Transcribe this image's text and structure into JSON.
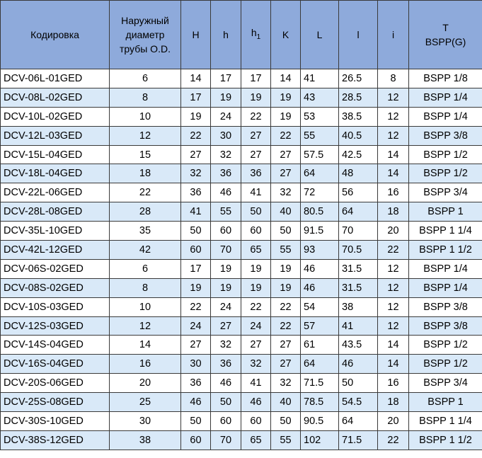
{
  "table": {
    "headers": [
      "Кодировка",
      "Наружный диаметр трубы O.D.",
      "H",
      "h",
      "h",
      "K",
      "L",
      "l",
      "i",
      "T BSPP(G)"
    ],
    "header_subscripts": {
      "4": "1"
    },
    "header_lines": {
      "1": [
        "Наружный",
        "диаметр",
        "трубы O.D."
      ],
      "9": [
        "T",
        "BSPP(G)"
      ]
    },
    "colors": {
      "header_bg": "#8eaadb",
      "alt_row_bg": "#d9e9f8",
      "border": "#3a3a3a"
    },
    "rows": [
      [
        "DCV-06L-01GED",
        "6",
        "14",
        "17",
        "17",
        "14",
        "41",
        "26.5",
        "8",
        "BSPP 1/8"
      ],
      [
        "DCV-08L-02GED",
        "8",
        "17",
        "19",
        "19",
        "19",
        "43",
        "28.5",
        "12",
        "BSPP 1/4"
      ],
      [
        "DCV-10L-02GED",
        "10",
        "19",
        "24",
        "22",
        "19",
        "53",
        "38.5",
        "12",
        "BSPP 1/4"
      ],
      [
        "DCV-12L-03GED",
        "12",
        "22",
        "30",
        "27",
        "22",
        "55",
        "40.5",
        "12",
        "BSPP 3/8"
      ],
      [
        "DCV-15L-04GED",
        "15",
        "27",
        "32",
        "27",
        "27",
        "57.5",
        "42.5",
        "14",
        "BSPP 1/2"
      ],
      [
        "DCV-18L-04GED",
        "18",
        "32",
        "36",
        "36",
        "27",
        "64",
        "48",
        "14",
        "BSPP 1/2"
      ],
      [
        "DCV-22L-06GED",
        "22",
        "36",
        "46",
        "41",
        "32",
        "72",
        "56",
        "16",
        "BSPP 3/4"
      ],
      [
        "DCV-28L-08GED",
        "28",
        "41",
        "55",
        "50",
        "40",
        "80.5",
        "64",
        "18",
        "BSPP 1"
      ],
      [
        "DCV-35L-10GED",
        "35",
        "50",
        "60",
        "60",
        "50",
        "91.5",
        "70",
        "20",
        "BSPP 1 1/4"
      ],
      [
        "DCV-42L-12GED",
        "42",
        "60",
        "70",
        "65",
        "55",
        "93",
        "70.5",
        "22",
        "BSPP 1 1/2"
      ],
      [
        "DCV-06S-02GED",
        "6",
        "17",
        "19",
        "19",
        "19",
        "46",
        "31.5",
        "12",
        "BSPP 1/4"
      ],
      [
        "DCV-08S-02GED",
        "8",
        "19",
        "19",
        "19",
        "19",
        "46",
        "31.5",
        "12",
        "BSPP 1/4"
      ],
      [
        "DCV-10S-03GED",
        "10",
        "22",
        "24",
        "22",
        "22",
        "54",
        "38",
        "12",
        "BSPP 3/8"
      ],
      [
        "DCV-12S-03GED",
        "12",
        "24",
        "27",
        "24",
        "22",
        "57",
        "41",
        "12",
        "BSPP 3/8"
      ],
      [
        "DCV-14S-04GED",
        "14",
        "27",
        "32",
        "27",
        "27",
        "61",
        "43.5",
        "14",
        "BSPP 1/2"
      ],
      [
        "DCV-16S-04GED",
        "16",
        "30",
        "36",
        "32",
        "27",
        "64",
        "46",
        "14",
        "BSPP 1/2"
      ],
      [
        "DCV-20S-06GED",
        "20",
        "36",
        "46",
        "41",
        "32",
        "71.5",
        "50",
        "16",
        "BSPP 3/4"
      ],
      [
        "DCV-25S-08GED",
        "25",
        "46",
        "50",
        "46",
        "40",
        "78.5",
        "54.5",
        "18",
        "BSPP 1"
      ],
      [
        "DCV-30S-10GED",
        "30",
        "50",
        "60",
        "60",
        "50",
        "90.5",
        "64",
        "20",
        "BSPP 1 1/4"
      ],
      [
        "DCV-38S-12GED",
        "38",
        "60",
        "70",
        "65",
        "55",
        "102",
        "71.5",
        "22",
        "BSPP 1 1/2"
      ]
    ]
  }
}
